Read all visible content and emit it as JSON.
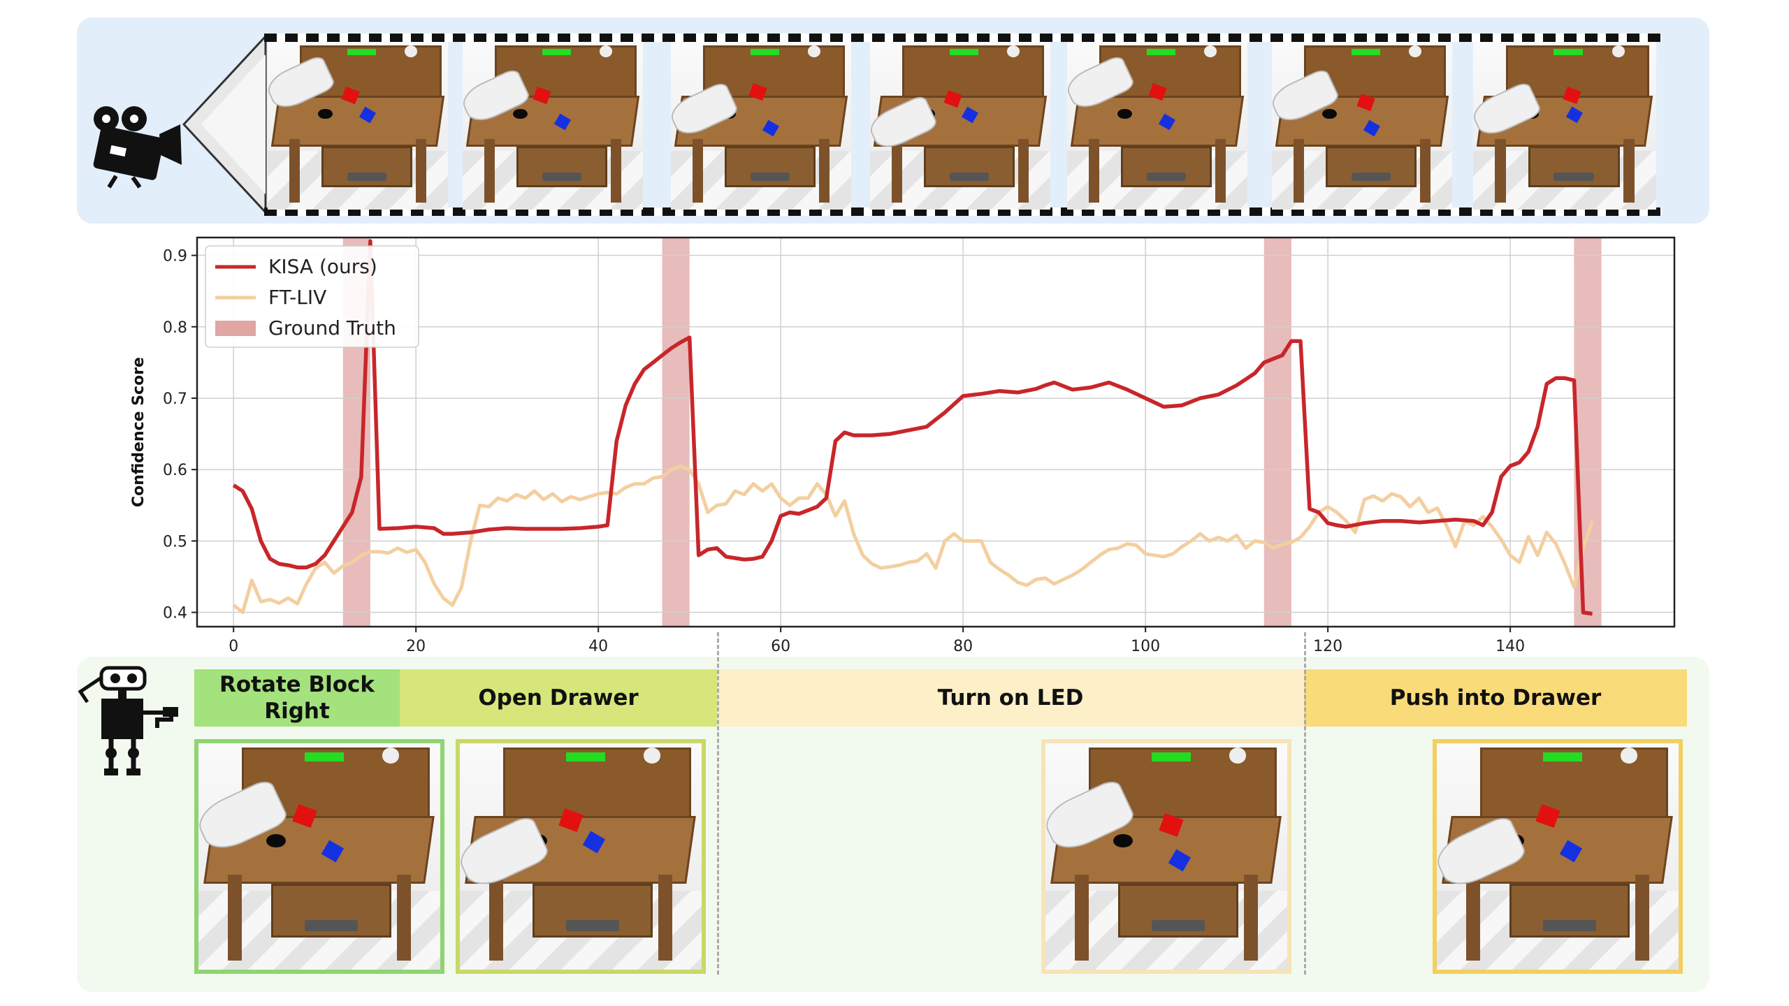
{
  "chart_data": {
    "type": "line",
    "ylabel": "Confidence Score",
    "xlabel": "",
    "xlim": [
      -4,
      158
    ],
    "ylim": [
      0.38,
      0.925
    ],
    "xticks": [
      0,
      20,
      40,
      60,
      80,
      100,
      120,
      140
    ],
    "yticks": [
      0.4,
      0.5,
      0.6,
      0.7,
      0.8,
      0.9
    ],
    "grid": true,
    "legend_position": "top-left",
    "series": [
      {
        "name": "KISA (ours)",
        "color": "#c8262a",
        "x": [
          0,
          1,
          2,
          3,
          4,
          5,
          6,
          7,
          8,
          9,
          10,
          11,
          12,
          13,
          14,
          15,
          16,
          18,
          20,
          22,
          23,
          24,
          26,
          28,
          30,
          32,
          34,
          36,
          38,
          40,
          41,
          42,
          43,
          44,
          45,
          46,
          47,
          48,
          49,
          50,
          51,
          52,
          53,
          54,
          55,
          56,
          57,
          58,
          59,
          60,
          61,
          62,
          63,
          64,
          65,
          66,
          67,
          68,
          70,
          72,
          74,
          76,
          77,
          78,
          80,
          82,
          84,
          86,
          88,
          89,
          90,
          92,
          94,
          96,
          98,
          100,
          102,
          104,
          106,
          108,
          110,
          112,
          113,
          114,
          115,
          116,
          117,
          118,
          119,
          120,
          121,
          122,
          124,
          126,
          128,
          130,
          132,
          134,
          136,
          137,
          138,
          139,
          140,
          141,
          142,
          143,
          144,
          145,
          146,
          147,
          148,
          149
        ],
        "values": [
          0.578,
          0.57,
          0.545,
          0.5,
          0.475,
          0.468,
          0.466,
          0.463,
          0.463,
          0.468,
          0.48,
          0.5,
          0.52,
          0.54,
          0.59,
          0.92,
          0.517,
          0.518,
          0.52,
          0.518,
          0.51,
          0.51,
          0.512,
          0.516,
          0.518,
          0.517,
          0.517,
          0.517,
          0.518,
          0.52,
          0.522,
          0.64,
          0.69,
          0.72,
          0.74,
          0.75,
          0.76,
          0.77,
          0.778,
          0.785,
          0.48,
          0.488,
          0.49,
          0.478,
          0.476,
          0.474,
          0.475,
          0.478,
          0.5,
          0.535,
          0.54,
          0.538,
          0.543,
          0.548,
          0.56,
          0.64,
          0.652,
          0.648,
          0.648,
          0.65,
          0.655,
          0.66,
          0.67,
          0.68,
          0.703,
          0.706,
          0.71,
          0.708,
          0.713,
          0.718,
          0.722,
          0.712,
          0.715,
          0.722,
          0.712,
          0.7,
          0.688,
          0.69,
          0.7,
          0.705,
          0.718,
          0.735,
          0.75,
          0.755,
          0.76,
          0.78,
          0.78,
          0.545,
          0.54,
          0.525,
          0.522,
          0.52,
          0.525,
          0.528,
          0.528,
          0.526,
          0.528,
          0.53,
          0.528,
          0.522,
          0.54,
          0.59,
          0.605,
          0.61,
          0.625,
          0.66,
          0.72,
          0.728,
          0.728,
          0.725,
          0.4,
          0.398
        ]
      },
      {
        "name": "FT-LIV",
        "color": "#f3cfa0",
        "x": [
          0,
          1,
          2,
          3,
          4,
          5,
          6,
          7,
          8,
          9,
          10,
          11,
          12,
          13,
          14,
          15,
          16,
          17,
          18,
          19,
          20,
          21,
          22,
          23,
          24,
          25,
          26,
          27,
          28,
          29,
          30,
          31,
          32,
          33,
          34,
          35,
          36,
          37,
          38,
          39,
          40,
          41,
          42,
          43,
          44,
          45,
          46,
          47,
          48,
          49,
          50,
          51,
          52,
          53,
          54,
          55,
          56,
          57,
          58,
          59,
          60,
          61,
          62,
          63,
          64,
          65,
          66,
          67,
          68,
          69,
          70,
          71,
          72,
          73,
          74,
          75,
          76,
          77,
          78,
          79,
          80,
          81,
          82,
          83,
          84,
          85,
          86,
          87,
          88,
          89,
          90,
          91,
          92,
          93,
          94,
          95,
          96,
          97,
          98,
          99,
          100,
          101,
          102,
          103,
          104,
          105,
          106,
          107,
          108,
          109,
          110,
          111,
          112,
          113,
          114,
          115,
          116,
          117,
          118,
          119,
          120,
          121,
          122,
          123,
          124,
          125,
          126,
          127,
          128,
          129,
          130,
          131,
          132,
          133,
          134,
          135,
          136,
          137,
          138,
          139,
          140,
          141,
          142,
          143,
          144,
          145,
          146,
          147,
          148,
          149
        ],
        "values": [
          0.41,
          0.4,
          0.445,
          0.415,
          0.418,
          0.413,
          0.42,
          0.412,
          0.44,
          0.462,
          0.47,
          0.455,
          0.465,
          0.47,
          0.48,
          0.485,
          0.485,
          0.483,
          0.49,
          0.484,
          0.488,
          0.47,
          0.44,
          0.42,
          0.41,
          0.435,
          0.5,
          0.55,
          0.548,
          0.56,
          0.556,
          0.565,
          0.56,
          0.57,
          0.558,
          0.566,
          0.555,
          0.562,
          0.558,
          0.562,
          0.566,
          0.568,
          0.566,
          0.575,
          0.58,
          0.58,
          0.588,
          0.59,
          0.6,
          0.605,
          0.6,
          0.58,
          0.54,
          0.55,
          0.552,
          0.57,
          0.565,
          0.58,
          0.57,
          0.58,
          0.56,
          0.55,
          0.56,
          0.56,
          0.58,
          0.565,
          0.535,
          0.556,
          0.51,
          0.48,
          0.468,
          0.462,
          0.464,
          0.466,
          0.47,
          0.472,
          0.482,
          0.462,
          0.5,
          0.51,
          0.5,
          0.5,
          0.5,
          0.47,
          0.46,
          0.452,
          0.442,
          0.438,
          0.446,
          0.448,
          0.44,
          0.446,
          0.452,
          0.46,
          0.47,
          0.48,
          0.488,
          0.49,
          0.496,
          0.494,
          0.482,
          0.48,
          0.478,
          0.482,
          0.492,
          0.5,
          0.51,
          0.5,
          0.505,
          0.5,
          0.508,
          0.49,
          0.5,
          0.498,
          0.49,
          0.495,
          0.498,
          0.505,
          0.52,
          0.54,
          0.548,
          0.54,
          0.528,
          0.512,
          0.558,
          0.563,
          0.556,
          0.566,
          0.562,
          0.548,
          0.56,
          0.54,
          0.546,
          0.522,
          0.492,
          0.528,
          0.522,
          0.534,
          0.52,
          0.502,
          0.48,
          0.47,
          0.506,
          0.48,
          0.512,
          0.496,
          0.468,
          0.435,
          0.49,
          0.528
        ]
      }
    ],
    "ground_truth": {
      "name": "Ground Truth",
      "color": "#dfa6a3",
      "spans": [
        [
          12,
          15
        ],
        [
          47,
          50
        ],
        [
          113,
          116
        ],
        [
          147,
          150
        ]
      ]
    },
    "stage_dividers_x": [
      50,
      116
    ]
  },
  "stages": [
    {
      "label_line1": "Rotate Block",
      "label_line2": "Right",
      "color": "#a3e27c"
    },
    {
      "label_line1": "Open Drawer",
      "label_line2": "",
      "color": "#d6e67a"
    },
    {
      "label_line1": "Turn on LED",
      "label_line2": "",
      "color": "#fdefc8"
    },
    {
      "label_line1": "Push into Drawer",
      "label_line2": "",
      "color": "#f9db7a"
    }
  ],
  "icons": {
    "top_left": "video-camera-icon",
    "bottom_left": "robot-icon"
  }
}
